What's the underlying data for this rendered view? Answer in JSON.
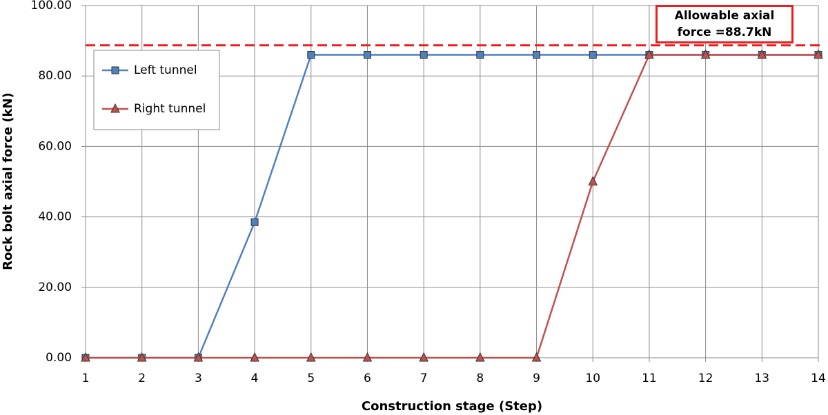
{
  "chart_data": {
    "type": "line",
    "x_label": "Construction stage (Step)",
    "y_label": "Rock bolt axial force (kN)",
    "x": [
      1,
      2,
      3,
      4,
      5,
      6,
      7,
      8,
      9,
      10,
      11,
      12,
      13,
      14
    ],
    "series": [
      {
        "name": "Left tunnel",
        "color": "#4f81bd",
        "marker": "square",
        "values": [
          0,
          0,
          0,
          38.5,
          86,
          86,
          86,
          86,
          86,
          86,
          86,
          86,
          86,
          86
        ]
      },
      {
        "name": "Right tunnel",
        "color": "#c0504d",
        "marker": "triangle",
        "values": [
          0,
          0,
          0,
          0,
          0,
          0,
          0,
          0,
          0,
          50,
          86,
          86,
          86,
          86
        ]
      }
    ],
    "xlim": [
      1,
      14
    ],
    "xticks": [
      1,
      2,
      3,
      4,
      5,
      6,
      7,
      8,
      9,
      10,
      11,
      12,
      13,
      14
    ],
    "ylim": [
      0,
      100
    ],
    "yticks": [
      {
        "value": 0,
        "label": "0.00"
      },
      {
        "value": 20,
        "label": "20.00"
      },
      {
        "value": 40,
        "label": "40.00"
      },
      {
        "value": 60,
        "label": "60.00"
      },
      {
        "value": 80,
        "label": "80.00"
      },
      {
        "value": 100,
        "label": "100.00"
      }
    ],
    "grid": true,
    "legend": "upper left",
    "threshold": {
      "value": 88.7,
      "color": "#ee1c1c",
      "label": "Allowable axial force =88.7kN"
    }
  }
}
